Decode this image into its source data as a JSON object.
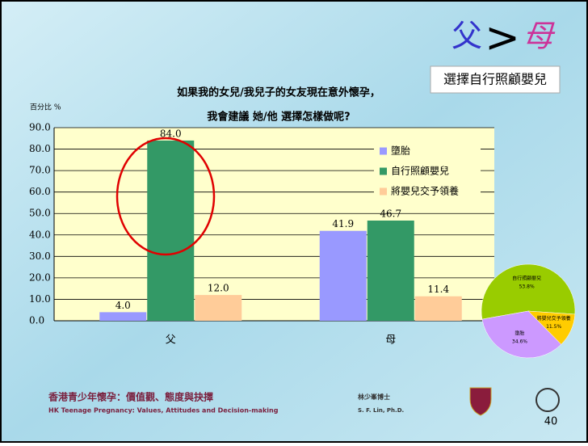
{
  "slide": {
    "heading": {
      "left": "父",
      "sign": ">",
      "right": "母"
    },
    "badge": "選擇自行照顧嬰兒"
  },
  "chart_data": [
    {
      "type": "bar",
      "title": [
        "如果我的女兒/我兒子的女友現在意外懷孕，",
        "我會建議 她/他 選擇怎樣做呢?"
      ],
      "y_label": "百分比 %",
      "categories": [
        "父",
        "母"
      ],
      "series": [
        {
          "name": "墮胎",
          "color": "#9999ff",
          "values": [
            4.0,
            41.9
          ],
          "value_labels": [
            "4.0",
            "41.9"
          ]
        },
        {
          "name": "自行照顧嬰兒",
          "color": "#339966",
          "values": [
            84.0,
            46.7
          ],
          "value_labels": [
            "84.0",
            "46.7"
          ]
        },
        {
          "name": "將嬰兒交予領養",
          "color": "#ffcc99",
          "values": [
            12.0,
            11.4
          ],
          "value_labels": [
            "12.0",
            "11.4"
          ]
        }
      ],
      "ylim": [
        0,
        90
      ],
      "yticks": [
        {
          "value": 0,
          "label": "0.0"
        },
        {
          "value": 10,
          "label": "10.0"
        },
        {
          "value": 20,
          "label": "20.0"
        },
        {
          "value": 30,
          "label": "30.0"
        },
        {
          "value": 40,
          "label": "40.0"
        },
        {
          "value": 50,
          "label": "50.0"
        },
        {
          "value": 60,
          "label": "60.0"
        },
        {
          "value": 70,
          "label": "70.0"
        },
        {
          "value": 80,
          "label": "80.0"
        },
        {
          "value": 90,
          "label": "90.0"
        }
      ],
      "grid": true,
      "legend": "upper right"
    },
    {
      "type": "pie",
      "categories": [
        "自行照顧嬰兒",
        "將嬰兒交予領養",
        "墮胎"
      ],
      "values": [
        53.8,
        11.5,
        34.6
      ],
      "value_labels": [
        "53.8%",
        "11.5%",
        "34.6%"
      ],
      "colors": [
        "#99cc00",
        "#ffcc00",
        "#cc99ff"
      ]
    }
  ],
  "footer": {
    "title_zh": "香港青少年懷孕：價值觀、態度與抉擇",
    "title_en": "HK Teenage Pregnancy: Values, Attitudes and Decision-making",
    "author_zh": "林少峯博士",
    "author_en": "S. F. Lin, Ph.D.",
    "page": "40"
  }
}
